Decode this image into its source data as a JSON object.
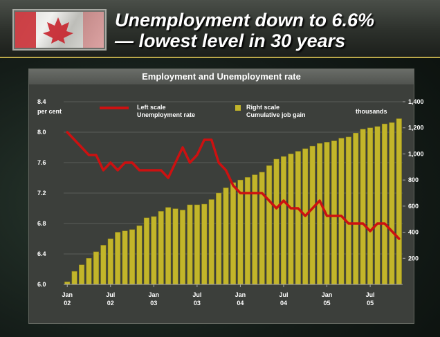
{
  "header": {
    "title_line1": "Unemployment down to 6.6%",
    "title_line2": "— lowest level in 30 years"
  },
  "colors": {
    "unemployment_line": "#cc1111",
    "job_gain_bars": "#c2b52a",
    "panel_background": "#3c3f3b"
  },
  "chart_data": {
    "type": "bar",
    "title": "Employment and Unemployment rate",
    "left_axis": {
      "unit": "per cent",
      "ticks": [
        "8.4",
        "8.0",
        "7.6",
        "7.2",
        "6.8",
        "6.4",
        "6.0"
      ],
      "range": [
        6.0,
        8.4
      ]
    },
    "right_axis": {
      "unit": "thousands",
      "ticks": [
        "1,400",
        "1,200",
        "1,000",
        "800",
        "600",
        "400",
        "200"
      ],
      "range": [
        0,
        1400
      ]
    },
    "x_ticks": [
      {
        "month": "Jan",
        "year": "02",
        "index": 0
      },
      {
        "month": "Jul",
        "year": "02",
        "index": 6
      },
      {
        "month": "Jan",
        "year": "03",
        "index": 12
      },
      {
        "month": "Jul",
        "year": "03",
        "index": 18
      },
      {
        "month": "Jan",
        "year": "04",
        "index": 24
      },
      {
        "month": "Jul",
        "year": "04",
        "index": 30
      },
      {
        "month": "Jan",
        "year": "05",
        "index": 36
      },
      {
        "month": "Jul",
        "year": "05",
        "index": 42
      }
    ],
    "legend": {
      "line_label_1": "Left scale",
      "line_label_2": "Unemployment rate",
      "bar_label_1": "Right scale",
      "bar_label_2": "Cumulative job gain"
    },
    "series": [
      {
        "name": "Unemployment rate",
        "type": "line",
        "axis": "left",
        "values": [
          8.0,
          7.9,
          7.8,
          7.7,
          7.7,
          7.5,
          7.6,
          7.5,
          7.6,
          7.6,
          7.5,
          7.5,
          7.5,
          7.5,
          7.4,
          7.6,
          7.8,
          7.6,
          7.7,
          7.9,
          7.9,
          7.6,
          7.5,
          7.3,
          7.2,
          7.2,
          7.2,
          7.2,
          7.1,
          7.0,
          7.1,
          7.0,
          7.0,
          6.9,
          7.0,
          7.1,
          6.9,
          6.9,
          6.9,
          6.8,
          6.8,
          6.8,
          6.7,
          6.8,
          6.8,
          6.7,
          6.6
        ]
      },
      {
        "name": "Cumulative job gain",
        "type": "bar",
        "axis": "right",
        "values": [
          20,
          100,
          150,
          200,
          250,
          300,
          350,
          400,
          410,
          420,
          450,
          510,
          520,
          560,
          590,
          580,
          570,
          610,
          610,
          615,
          650,
          700,
          740,
          780,
          800,
          820,
          840,
          860,
          910,
          960,
          980,
          1000,
          1020,
          1040,
          1060,
          1080,
          1090,
          1100,
          1120,
          1130,
          1160,
          1190,
          1200,
          1210,
          1230,
          1240,
          1270
        ]
      }
    ]
  }
}
